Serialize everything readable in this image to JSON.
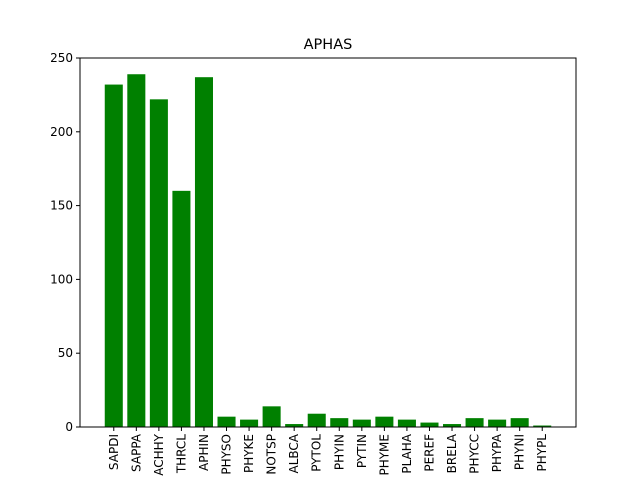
{
  "chart_data": {
    "type": "bar",
    "title": "APHAS",
    "xlabel": "",
    "ylabel": "",
    "categories": [
      "SAPDI",
      "SAPPA",
      "ACHHY",
      "THRCL",
      "APHIN",
      "PHYSO",
      "PHYKE",
      "NOTSP",
      "ALBCA",
      "PYTOL",
      "PHYIN",
      "PYTIN",
      "PHYME",
      "PLAHA",
      "PEREF",
      "BRELA",
      "PHYCC",
      "PHYPA",
      "PHYNI",
      "PHYPL"
    ],
    "values": [
      232,
      239,
      222,
      160,
      237,
      7,
      5,
      14,
      2,
      9,
      6,
      5,
      7,
      5,
      3,
      2,
      6,
      5,
      6,
      1
    ],
    "ylim": [
      0,
      250
    ],
    "yticks": [
      0,
      50,
      100,
      150,
      200,
      250
    ],
    "bar_color": "#008000",
    "grid": false,
    "legend": "none"
  }
}
